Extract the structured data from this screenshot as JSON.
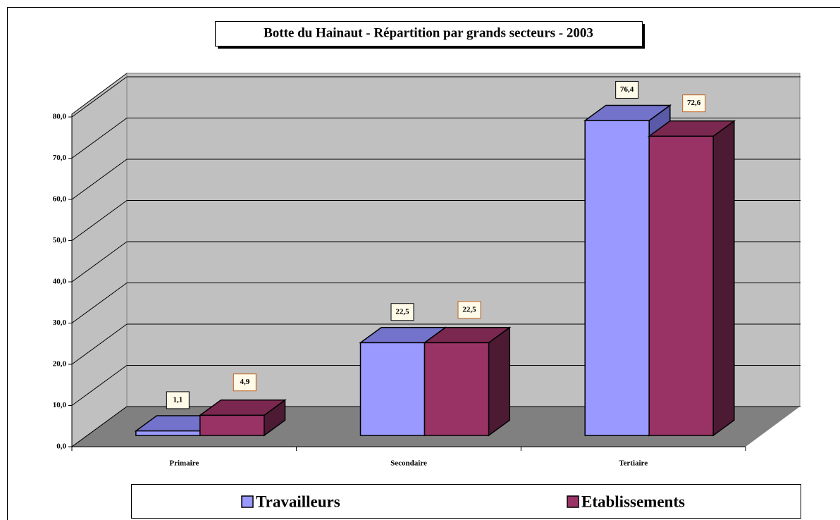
{
  "chart_data": {
    "type": "bar3d",
    "title": "Botte du Hainaut - Répartition par grands secteurs - 2003",
    "categories": [
      "Primaire",
      "Secondaire",
      "Tertiaire"
    ],
    "series": [
      {
        "name": "Travailleurs",
        "color": "#9999ff",
        "side": "#5a5aa8",
        "top": "#7373cc",
        "values": [
          1.1,
          22.5,
          76.4
        ],
        "value_labels": [
          "1,1",
          "22,5",
          "76,4"
        ]
      },
      {
        "name": "Etablissements",
        "color": "#993366",
        "side": "#4d1a33",
        "top": "#7a2850",
        "values": [
          4.9,
          22.5,
          72.6
        ],
        "value_labels": [
          "4,9",
          "22,5",
          "72,6"
        ]
      }
    ],
    "ylim": [
      0,
      80
    ],
    "yticks": [
      {
        "value": 0,
        "label": "0,0"
      },
      {
        "value": 10,
        "label": "10,0"
      },
      {
        "value": 20,
        "label": "20,0"
      },
      {
        "value": 30,
        "label": "30,0"
      },
      {
        "value": 40,
        "label": "40,0"
      },
      {
        "value": 50,
        "label": "50,0"
      },
      {
        "value": 60,
        "label": "60,0"
      },
      {
        "value": 70,
        "label": "70,0"
      },
      {
        "value": 80,
        "label": "80,0"
      }
    ],
    "grid": true,
    "legend": "bottom"
  }
}
